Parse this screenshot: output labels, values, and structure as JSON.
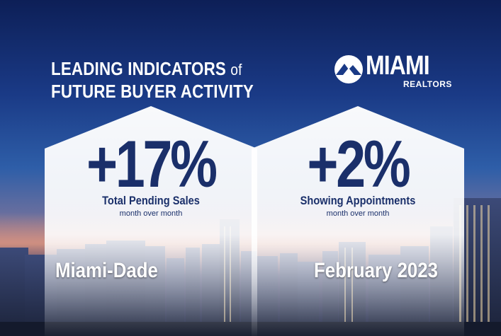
{
  "headline": {
    "line1": "LEADING INDICATORS",
    "of": "of",
    "line2": "FUTURE BUYER ACTIVITY"
  },
  "logo": {
    "word": "MIAMI",
    "sub": "REALTORS",
    "icon": "miami-realtors-logo-mark"
  },
  "cards": [
    {
      "value": "+17%",
      "label": "Total Pending Sales",
      "sub": "month over month"
    },
    {
      "value": "+2%",
      "label": "Showing Appointments",
      "sub": "month over month"
    }
  ],
  "footer": {
    "region": "Miami-Dade",
    "period": "February 2023"
  },
  "colors": {
    "navy": "#1a2f6a",
    "sky": "#0d1f57",
    "card": "#ffffff"
  }
}
